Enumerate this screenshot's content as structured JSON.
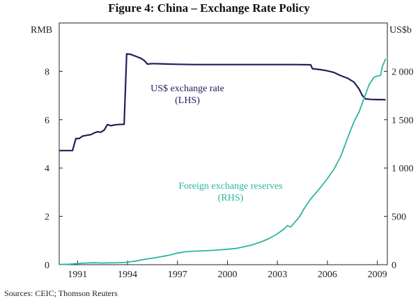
{
  "chart_data": {
    "type": "line",
    "title": "Figure 4: China – Exchange Rate Policy",
    "left_axis": {
      "unit": "RMB",
      "ylim": [
        0,
        10
      ],
      "ticks": [
        0,
        2,
        4,
        6,
        8
      ]
    },
    "right_axis": {
      "unit": "US$b",
      "ylim": [
        0,
        2500
      ],
      "ticks": [
        0,
        500,
        1000,
        1500,
        2000
      ],
      "tick_labels": [
        "0",
        "500",
        "1 000",
        "1 500",
        "2 000"
      ]
    },
    "x_axis": {
      "range": [
        1989.9,
        2009.6
      ],
      "ticks": [
        1991,
        1994,
        1997,
        2000,
        2003,
        2006,
        2009
      ]
    },
    "series": [
      {
        "name": "US$ exchange rate",
        "axis": "LHS",
        "color": "#1f1f5c",
        "label_lines": [
          "US$ exchange rate",
          "(LHS)"
        ],
        "points": [
          [
            1989.9,
            4.72
          ],
          [
            1990.7,
            4.72
          ],
          [
            1990.9,
            5.22
          ],
          [
            1991.1,
            5.22
          ],
          [
            1991.3,
            5.32
          ],
          [
            1991.5,
            5.35
          ],
          [
            1991.8,
            5.38
          ],
          [
            1992.0,
            5.45
          ],
          [
            1992.2,
            5.5
          ],
          [
            1992.4,
            5.48
          ],
          [
            1992.6,
            5.57
          ],
          [
            1992.8,
            5.8
          ],
          [
            1993.0,
            5.75
          ],
          [
            1993.2,
            5.78
          ],
          [
            1993.5,
            5.8
          ],
          [
            1993.8,
            5.81
          ],
          [
            1993.95,
            8.72
          ],
          [
            1994.2,
            8.7
          ],
          [
            1994.5,
            8.62
          ],
          [
            1994.8,
            8.54
          ],
          [
            1995.0,
            8.45
          ],
          [
            1995.2,
            8.3
          ],
          [
            1995.5,
            8.32
          ],
          [
            1996.0,
            8.31
          ],
          [
            1996.5,
            8.3
          ],
          [
            1997.0,
            8.29
          ],
          [
            1998.0,
            8.28
          ],
          [
            2000.0,
            8.28
          ],
          [
            2002.0,
            8.28
          ],
          [
            2004.0,
            8.28
          ],
          [
            2005.0,
            8.27
          ],
          [
            2005.1,
            8.11
          ],
          [
            2005.6,
            8.07
          ],
          [
            2006.0,
            8.02
          ],
          [
            2006.4,
            7.95
          ],
          [
            2006.8,
            7.82
          ],
          [
            2007.2,
            7.72
          ],
          [
            2007.6,
            7.55
          ],
          [
            2007.9,
            7.27
          ],
          [
            2008.1,
            7.0
          ],
          [
            2008.3,
            6.86
          ],
          [
            2008.6,
            6.84
          ],
          [
            2009.0,
            6.83
          ],
          [
            2009.3,
            6.83
          ],
          [
            2009.5,
            6.82
          ]
        ]
      },
      {
        "name": "Foreign exchange reserves",
        "axis": "RHS",
        "color": "#2bb5a0",
        "label_lines": [
          "Foreign exchange reserves",
          "(RHS)"
        ],
        "points": [
          [
            1989.9,
            2
          ],
          [
            1990.5,
            5
          ],
          [
            1991.0,
            12
          ],
          [
            1991.5,
            17
          ],
          [
            1992.0,
            20
          ],
          [
            1992.5,
            17
          ],
          [
            1993.0,
            19
          ],
          [
            1993.5,
            21
          ],
          [
            1994.0,
            25
          ],
          [
            1994.5,
            38
          ],
          [
            1995.0,
            55
          ],
          [
            1995.5,
            68
          ],
          [
            1996.0,
            82
          ],
          [
            1996.5,
            98
          ],
          [
            1997.0,
            120
          ],
          [
            1997.5,
            134
          ],
          [
            1998.0,
            140
          ],
          [
            1999.0,
            147
          ],
          [
            2000.0,
            160
          ],
          [
            2000.5,
            168
          ],
          [
            2001.0,
            185
          ],
          [
            2001.5,
            205
          ],
          [
            2002.0,
            235
          ],
          [
            2002.5,
            270
          ],
          [
            2003.0,
            320
          ],
          [
            2003.4,
            370
          ],
          [
            2003.6,
            405
          ],
          [
            2003.8,
            390
          ],
          [
            2004.0,
            430
          ],
          [
            2004.3,
            490
          ],
          [
            2004.6,
            580
          ],
          [
            2005.0,
            680
          ],
          [
            2005.5,
            780
          ],
          [
            2006.0,
            890
          ],
          [
            2006.4,
            990
          ],
          [
            2006.8,
            1120
          ],
          [
            2007.0,
            1210
          ],
          [
            2007.3,
            1350
          ],
          [
            2007.6,
            1480
          ],
          [
            2007.9,
            1580
          ],
          [
            2008.2,
            1720
          ],
          [
            2008.5,
            1860
          ],
          [
            2008.8,
            1940
          ],
          [
            2009.0,
            1950
          ],
          [
            2009.2,
            1960
          ],
          [
            2009.3,
            2050
          ],
          [
            2009.5,
            2130
          ]
        ]
      }
    ],
    "source": "Sources: CEIC; Thomson Reuters"
  }
}
